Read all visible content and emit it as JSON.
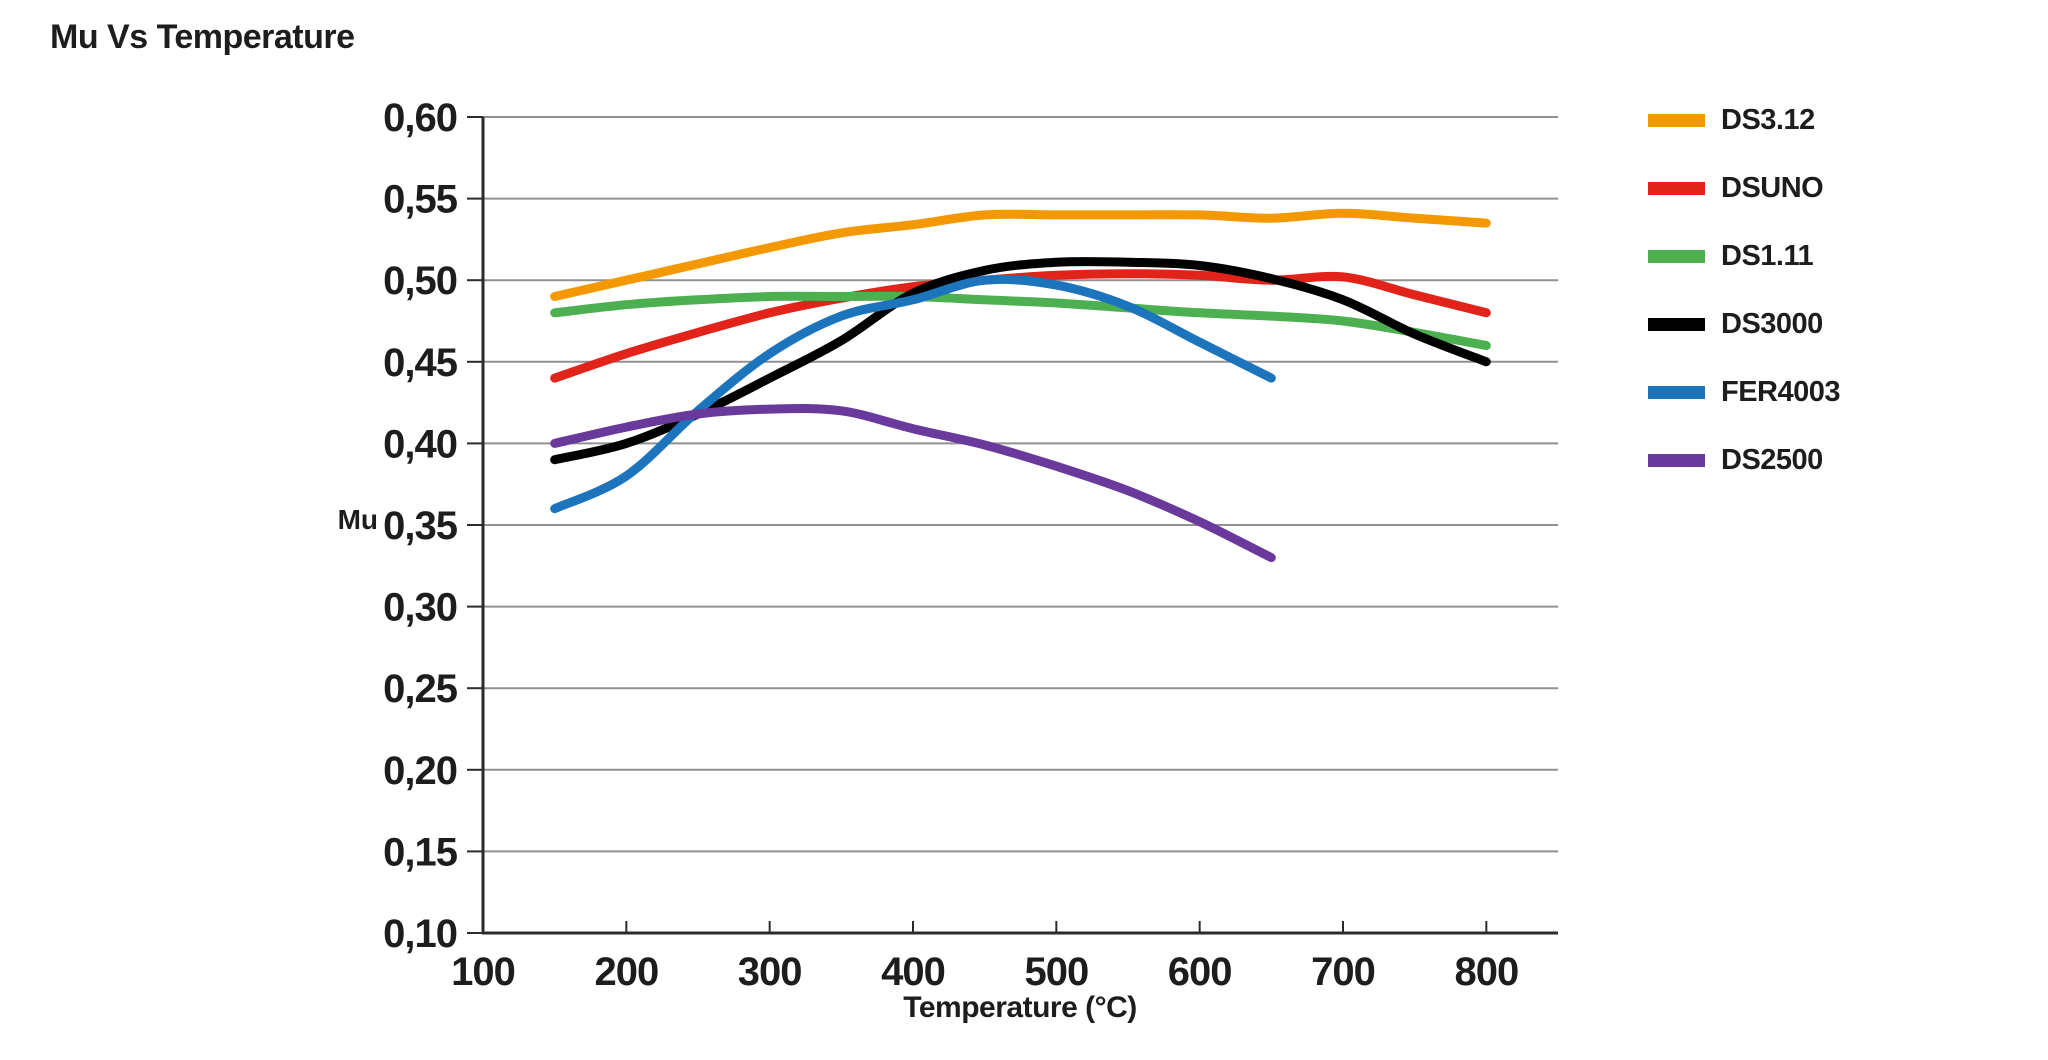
{
  "title": "Mu Vs Temperature",
  "chart_data": {
    "type": "line",
    "title": "Mu Vs Temperature",
    "x_label": "Temperature (°C)",
    "y_label": "Mu",
    "x_range": [
      100,
      850
    ],
    "y_range": [
      0.1,
      0.6
    ],
    "x_ticks": [
      100,
      200,
      300,
      400,
      500,
      600,
      700,
      800
    ],
    "y_ticks": [
      {
        "value": 0.1,
        "label": "0,10"
      },
      {
        "value": 0.15,
        "label": "0,15"
      },
      {
        "value": 0.2,
        "label": "0,20"
      },
      {
        "value": 0.25,
        "label": "0,25"
      },
      {
        "value": 0.3,
        "label": "0,30"
      },
      {
        "value": 0.35,
        "label": "0,35"
      },
      {
        "value": 0.4,
        "label": "0,40"
      },
      {
        "value": 0.45,
        "label": "0,45"
      },
      {
        "value": 0.5,
        "label": "0,50"
      },
      {
        "value": 0.55,
        "label": "0,55"
      },
      {
        "value": 0.6,
        "label": "0,60"
      }
    ],
    "grid": "horizontal",
    "legend_position": "right",
    "x": [
      150,
      200,
      250,
      300,
      350,
      400,
      450,
      500,
      550,
      600,
      650,
      700,
      750,
      800
    ],
    "series": [
      {
        "name": "DS3.12",
        "color": "#F49800",
        "values": [
          0.49,
          0.5,
          0.51,
          0.52,
          0.529,
          0.534,
          0.54,
          0.54,
          0.54,
          0.54,
          0.538,
          0.541,
          0.538,
          0.535
        ]
      },
      {
        "name": "DSUNO",
        "color": "#E2231A",
        "values": [
          0.44,
          0.455,
          0.468,
          0.48,
          0.489,
          0.496,
          0.5,
          0.503,
          0.504,
          0.503,
          0.5,
          0.502,
          0.491,
          0.48
        ]
      },
      {
        "name": "DS1.11",
        "color": "#4CAF50",
        "values": [
          0.48,
          0.485,
          0.488,
          0.49,
          0.49,
          0.49,
          0.488,
          0.486,
          0.483,
          0.48,
          0.478,
          0.475,
          0.468,
          0.46
        ]
      },
      {
        "name": "DS3000",
        "color": "#000000",
        "values": [
          0.39,
          0.4,
          0.418,
          0.44,
          0.463,
          0.492,
          0.506,
          0.511,
          0.511,
          0.509,
          0.501,
          0.488,
          0.467,
          0.45
        ]
      },
      {
        "name": "FER4003",
        "color": "#1C75BC",
        "values": [
          0.36,
          0.38,
          0.42,
          0.455,
          0.478,
          0.488,
          0.5,
          0.497,
          0.484,
          0.462,
          0.44,
          null,
          null,
          null
        ]
      },
      {
        "name": "DS2500",
        "color": "#69399B",
        "values": [
          0.4,
          0.41,
          0.418,
          0.421,
          0.42,
          0.409,
          0.399,
          0.386,
          0.371,
          0.352,
          0.33,
          null,
          null,
          null
        ]
      }
    ],
    "style": {
      "grid_color": "#919191",
      "axis_color": "#2b2b2b",
      "text_color": "#1d1d1b",
      "line_width": 9
    }
  }
}
